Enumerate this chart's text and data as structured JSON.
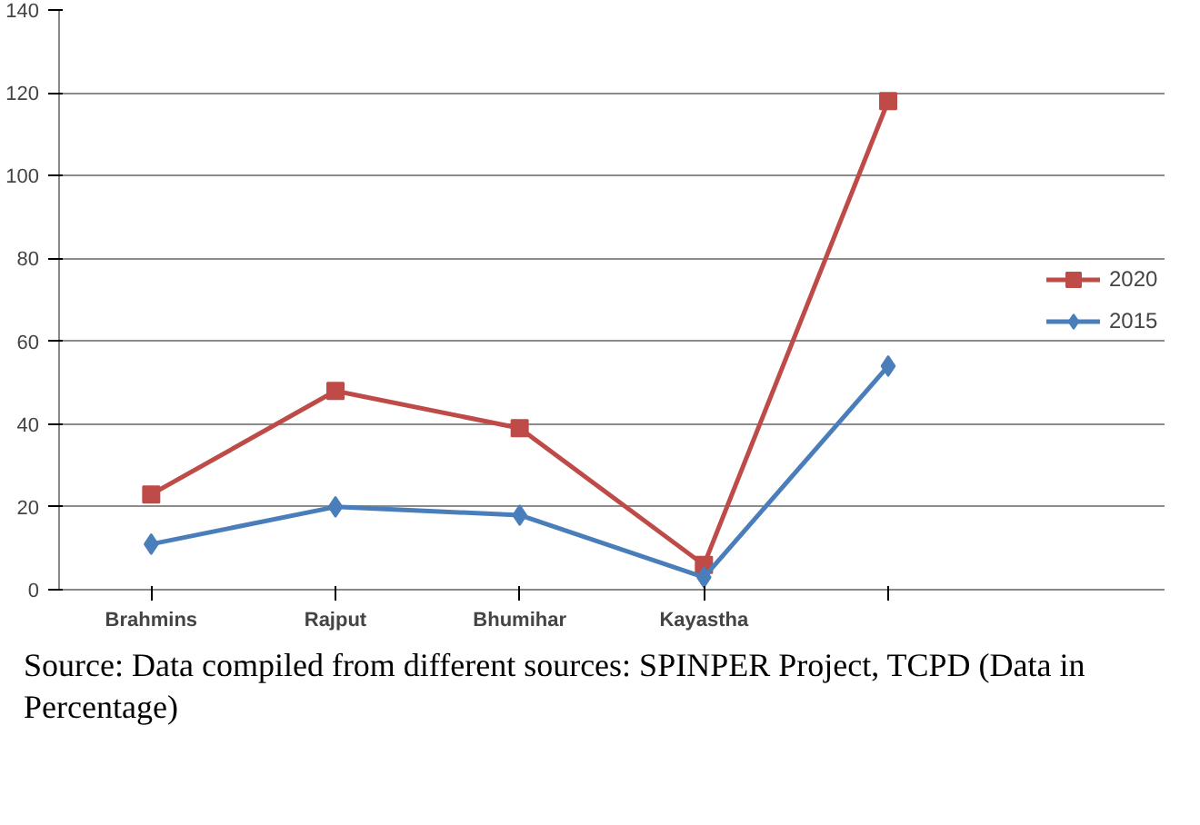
{
  "chart_data": {
    "type": "line",
    "categories": [
      "Brahmins",
      "Rajput",
      "Bhumihar",
      "Kayastha",
      null
    ],
    "series": [
      {
        "name": "2020",
        "color": "#be4b48",
        "marker": "square",
        "values": [
          23,
          48,
          39,
          6,
          118
        ]
      },
      {
        "name": "2015",
        "color": "#4a7ebb",
        "marker": "diamond",
        "values": [
          11,
          20,
          18,
          3,
          54
        ]
      }
    ],
    "ylim": [
      0,
      140
    ],
    "yticks": [
      0,
      20,
      40,
      60,
      80,
      100,
      120,
      140
    ],
    "grid": "y",
    "legend": "right",
    "line_style": "solid",
    "annotations": [
      "Source: Data compiled from different sources: SPINPER Project, TCPD (Data in Percentage)"
    ]
  }
}
